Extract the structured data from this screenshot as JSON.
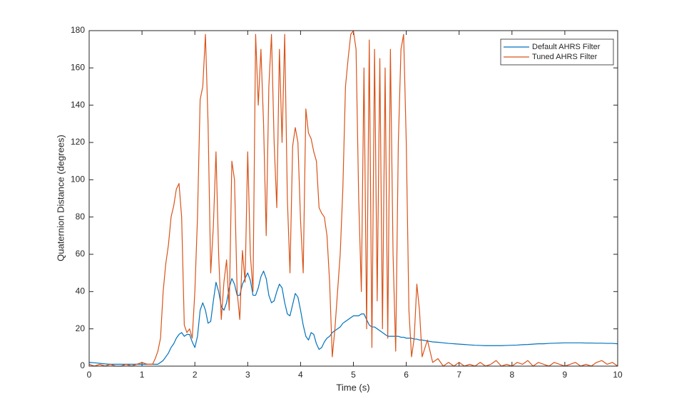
{
  "chart_data": {
    "type": "line",
    "xlabel": "Time (s)",
    "ylabel": "Quaternion Distance (degrees)",
    "xlim": [
      0,
      10
    ],
    "ylim": [
      0,
      180
    ],
    "xticks": [
      0,
      1,
      2,
      3,
      4,
      5,
      6,
      7,
      8,
      9,
      10
    ],
    "yticks": [
      0,
      20,
      40,
      60,
      80,
      100,
      120,
      140,
      160,
      180
    ],
    "grid": false,
    "legend_position": "northeast",
    "x": [
      0,
      0.1,
      0.2,
      0.3,
      0.4,
      0.5,
      0.6,
      0.7,
      0.8,
      0.9,
      1.0,
      1.1,
      1.2,
      1.25,
      1.3,
      1.35,
      1.4,
      1.45,
      1.5,
      1.55,
      1.6,
      1.65,
      1.7,
      1.75,
      1.8,
      1.85,
      1.9,
      1.95,
      2.0,
      2.05,
      2.1,
      2.15,
      2.2,
      2.25,
      2.3,
      2.35,
      2.4,
      2.45,
      2.5,
      2.55,
      2.6,
      2.65,
      2.7,
      2.75,
      2.8,
      2.85,
      2.9,
      2.95,
      3.0,
      3.05,
      3.1,
      3.15,
      3.2,
      3.25,
      3.3,
      3.35,
      3.4,
      3.45,
      3.5,
      3.55,
      3.6,
      3.65,
      3.7,
      3.75,
      3.8,
      3.85,
      3.9,
      3.95,
      4.0,
      4.05,
      4.1,
      4.15,
      4.2,
      4.25,
      4.3,
      4.35,
      4.4,
      4.45,
      4.5,
      4.55,
      4.6,
      4.65,
      4.7,
      4.75,
      4.8,
      4.85,
      4.9,
      4.95,
      5.0,
      5.05,
      5.1,
      5.15,
      5.2,
      5.25,
      5.3,
      5.35,
      5.4,
      5.45,
      5.5,
      5.55,
      5.6,
      5.65,
      5.7,
      5.75,
      5.8,
      5.85,
      5.9,
      5.95,
      6.0,
      6.05,
      6.1,
      6.15,
      6.2,
      6.25,
      6.3,
      6.4,
      6.5,
      6.6,
      6.7,
      6.8,
      6.9,
      7.0,
      7.1,
      7.2,
      7.3,
      7.4,
      7.5,
      7.6,
      7.7,
      7.8,
      7.9,
      8.0,
      8.1,
      8.2,
      8.3,
      8.4,
      8.5,
      8.6,
      8.7,
      8.8,
      8.9,
      9.0,
      9.1,
      9.2,
      9.3,
      9.4,
      9.5,
      9.6,
      9.7,
      9.8,
      9.9,
      10.0
    ],
    "series": [
      {
        "name": "Default AHRS Filter",
        "color": "#0072BD",
        "values": [
          2,
          1.8,
          1.5,
          1.2,
          1,
          1,
          1,
          1,
          1,
          1,
          1,
          1,
          1,
          1,
          1,
          2,
          3,
          5,
          7,
          10,
          12,
          15,
          17,
          18,
          16,
          17,
          17,
          13,
          10,
          16,
          30,
          34,
          30,
          23,
          24,
          35,
          45,
          40,
          32,
          30,
          34,
          42,
          47,
          44,
          38,
          38,
          44,
          47,
          50,
          46,
          38,
          38,
          42,
          48,
          51,
          47,
          38,
          34,
          35,
          40,
          44,
          42,
          34,
          28,
          27,
          33,
          39,
          37,
          30,
          22,
          16,
          14,
          18,
          17,
          12,
          9,
          10,
          13,
          15,
          16,
          18,
          19,
          20,
          21,
          23,
          24,
          25,
          26,
          27,
          27,
          27,
          28,
          28,
          25,
          22,
          21,
          21,
          20,
          19,
          18,
          17,
          16,
          16,
          16,
          16,
          16,
          15.5,
          15.5,
          15,
          15,
          15,
          14.5,
          14.5,
          14,
          14,
          13.5,
          13,
          12.8,
          12.5,
          12.2,
          12,
          11.8,
          11.6,
          11.4,
          11.2,
          11.1,
          11,
          11,
          11,
          11,
          11.1,
          11.2,
          11.3,
          11.5,
          11.6,
          11.8,
          12,
          12,
          12.2,
          12.3,
          12.4,
          12.5,
          12.5,
          12.5,
          12.5,
          12.4,
          12.4,
          12.3,
          12.3,
          12.2,
          12.2,
          12
        ]
      },
      {
        "name": "Tuned AHRS Filter",
        "color": "#D95319",
        "values": [
          1,
          0,
          1,
          0,
          1,
          0,
          0,
          1,
          0,
          1,
          2,
          1,
          1,
          4,
          8,
          15,
          40,
          55,
          65,
          80,
          86,
          95,
          98,
          80,
          22,
          18,
          20,
          15,
          40,
          80,
          143,
          150,
          178,
          130,
          50,
          75,
          115,
          60,
          25,
          45,
          57,
          30,
          110,
          100,
          40,
          25,
          62,
          45,
          115,
          60,
          40,
          178,
          140,
          170,
          130,
          70,
          150,
          178,
          120,
          85,
          170,
          120,
          178,
          90,
          50,
          118,
          128,
          120,
          78,
          50,
          138,
          125,
          122,
          115,
          110,
          85,
          82,
          80,
          70,
          45,
          5,
          20,
          40,
          60,
          95,
          150,
          165,
          178,
          180,
          170,
          90,
          40,
          160,
          20,
          175,
          10,
          170,
          35,
          165,
          20,
          160,
          15,
          170,
          60,
          8,
          120,
          170,
          178,
          120,
          30,
          5,
          15,
          44,
          30,
          5,
          14,
          2,
          4,
          0,
          2,
          0,
          2,
          0,
          1,
          0,
          2,
          0,
          1,
          3,
          0,
          1,
          0,
          2,
          1,
          3,
          0,
          2,
          1,
          0,
          2,
          1,
          0,
          1,
          2,
          0,
          1,
          0,
          2,
          3,
          1,
          2,
          0
        ]
      }
    ]
  }
}
